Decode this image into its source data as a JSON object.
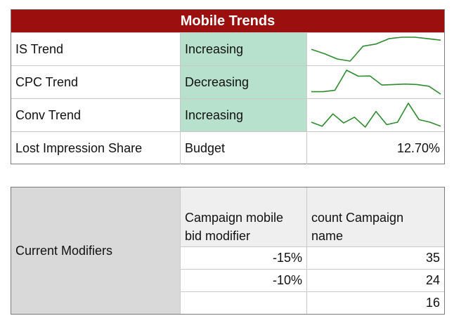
{
  "colors": {
    "header_bg": "#9b0f0f",
    "status_bg": "#b7e1cd",
    "spark_line": "#2e8b2e",
    "modifiers_label_bg": "#d9d9d9",
    "modifiers_header_bg": "#efefef"
  },
  "trends": {
    "title": "Mobile Trends",
    "rows": [
      {
        "label": "IS Trend",
        "status": "Increasing",
        "spark": [
          8.5,
          6.5,
          4.0,
          3.0,
          10.0,
          11.0,
          13.5,
          14.2,
          14.2,
          13.5,
          12.8
        ]
      },
      {
        "label": "CPC Trend",
        "status": "Decreasing",
        "spark": [
          3.0,
          3.0,
          3.6,
          12.0,
          9.5,
          9.6,
          5.8,
          6.0,
          6.2,
          6.0,
          5.3,
          2.0
        ]
      },
      {
        "label": "Conv Trend",
        "status": "Increasing",
        "spark": [
          2.5,
          0.0,
          7.5,
          2.0,
          5.5,
          -0.5,
          9.0,
          1.0,
          2.5,
          14.0,
          4.0,
          2.5,
          0.0
        ]
      },
      {
        "label": "Lost Impression Share",
        "status": "Budget",
        "value": "12.70%"
      }
    ]
  },
  "modifiers": {
    "label": "Current Modifiers",
    "col1_header": "Campaign mobile bid modifier",
    "col2_header": "count Campaign name",
    "rows": [
      {
        "modifier": "-15%",
        "count": "35"
      },
      {
        "modifier": "-10%",
        "count": "24"
      },
      {
        "modifier": "",
        "count": "16"
      }
    ]
  }
}
